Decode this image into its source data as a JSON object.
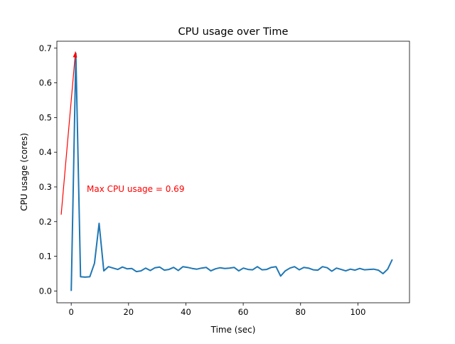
{
  "chart_data": {
    "type": "line",
    "title": "CPU usage over Time",
    "xlabel": "Time (sec)",
    "ylabel": "CPU usage (cores)",
    "xlim": [
      -5,
      118
    ],
    "ylim": [
      -0.034,
      0.72
    ],
    "xticks": [
      0,
      20,
      40,
      60,
      80,
      100
    ],
    "yticks": [
      0.0,
      0.1,
      0.2,
      0.3,
      0.4,
      0.5,
      0.6,
      0.7
    ],
    "xtick_labels": [
      "0",
      "20",
      "40",
      "60",
      "80",
      "100"
    ],
    "ytick_labels": [
      "0.0",
      "0.1",
      "0.2",
      "0.3",
      "0.4",
      "0.5",
      "0.6",
      "0.7"
    ],
    "grid": false,
    "series": [
      {
        "name": "CPU usage",
        "color": "#1f77b4",
        "x_step": 1.75,
        "values": [
          0.0,
          0.685,
          0.041,
          0.04,
          0.041,
          0.08,
          0.195,
          0.058,
          0.07,
          0.066,
          0.062,
          0.069,
          0.064,
          0.065,
          0.056,
          0.058,
          0.066,
          0.059,
          0.067,
          0.069,
          0.06,
          0.062,
          0.068,
          0.059,
          0.07,
          0.068,
          0.065,
          0.063,
          0.066,
          0.068,
          0.058,
          0.064,
          0.067,
          0.065,
          0.066,
          0.068,
          0.058,
          0.066,
          0.062,
          0.061,
          0.07,
          0.061,
          0.062,
          0.068,
          0.07,
          0.043,
          0.058,
          0.066,
          0.07,
          0.061,
          0.068,
          0.066,
          0.061,
          0.06,
          0.07,
          0.067,
          0.057,
          0.066,
          0.062,
          0.058,
          0.063,
          0.06,
          0.065,
          0.061,
          0.062,
          0.063,
          0.06,
          0.05,
          0.063,
          0.091
        ]
      }
    ],
    "annotation": {
      "text": "Max CPU usage = 0.69",
      "color": "#ff0000",
      "point": [
        1.5,
        0.69
      ],
      "text_anchor": [
        -3.5,
        0.22
      ]
    }
  }
}
